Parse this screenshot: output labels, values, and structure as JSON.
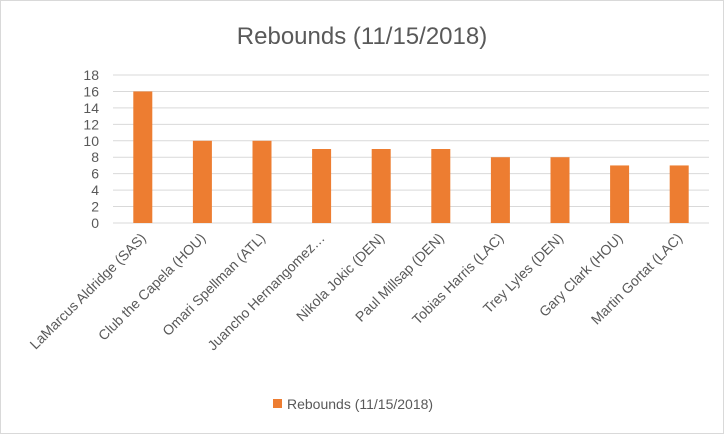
{
  "chart_data": {
    "type": "bar",
    "title": "Rebounds (11/15/2018)",
    "categories": [
      "LaMarcus Aldridge (SAS)",
      "Club the Capela (HOU)",
      "Omari Spellman (ATL)",
      "Juancho Hernangomez…",
      "Nikola Jokic (DEN)",
      "Paul Millsap (DEN)",
      "Tobias Harris (LAC)",
      "Trey Lyles (DEN)",
      "Gary Clark (HOU)",
      "Martin Gortat (LAC)"
    ],
    "series": [
      {
        "name": "Rebounds (11/15/2018)",
        "values": [
          16,
          10,
          10,
          9,
          9,
          9,
          8,
          8,
          7,
          7
        ]
      }
    ],
    "ylim": [
      0,
      18
    ],
    "yticks": [
      0,
      2,
      4,
      6,
      8,
      10,
      12,
      14,
      16,
      18
    ],
    "grid": true,
    "legend": "bottom",
    "bar_color": "#ed7d31"
  }
}
